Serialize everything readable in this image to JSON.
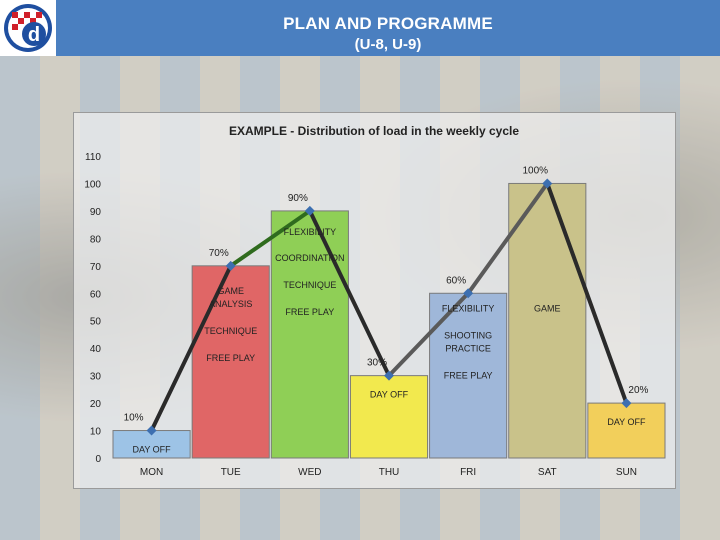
{
  "header": {
    "title": "PLAN AND PROGRAMME",
    "subtitle": "(U-8, U-9)"
  },
  "logo": {
    "letter": "d"
  },
  "colors": {
    "header": "#4a7fc0",
    "line": "#2a2a2a",
    "marker": "#3d6fb0"
  },
  "chart_data": {
    "type": "bar",
    "title": "EXAMPLE - Distribution of load in the weekly cycle",
    "xlabel": "",
    "ylabel": "",
    "ylim": [
      0,
      110
    ],
    "yticks": [
      0,
      10,
      20,
      30,
      40,
      50,
      60,
      70,
      80,
      90,
      100,
      110
    ],
    "grid": false,
    "categories": [
      "MON",
      "TUE",
      "WED",
      "THU",
      "FRI",
      "SAT",
      "SUN"
    ],
    "values": [
      10,
      70,
      90,
      30,
      60,
      100,
      20
    ],
    "value_labels": [
      "10%",
      "70%",
      "90%",
      "30%",
      "60%",
      "100%",
      "20%"
    ],
    "bar_colors": [
      "#9dc3e6",
      "#e06666",
      "#8fcf56",
      "#f2e94e",
      "#9fb7d9",
      "#c9c28a",
      "#f2cf5b"
    ],
    "line_overlay": true,
    "annotations": [
      [
        "DAY OFF"
      ],
      [
        "GAME",
        "ANALYSIS",
        "TECHNIQUE",
        "FREE PLAY"
      ],
      [
        "FLEXIBILITY",
        "COORDINATION",
        "TECHNIQUE",
        "FREE PLAY"
      ],
      [
        "DAY OFF"
      ],
      [
        "FLEXIBILITY",
        "SHOOTING",
        "PRACTICE",
        "FREE PLAY"
      ],
      [
        "GAME"
      ],
      [
        "DAY OFF"
      ]
    ]
  }
}
